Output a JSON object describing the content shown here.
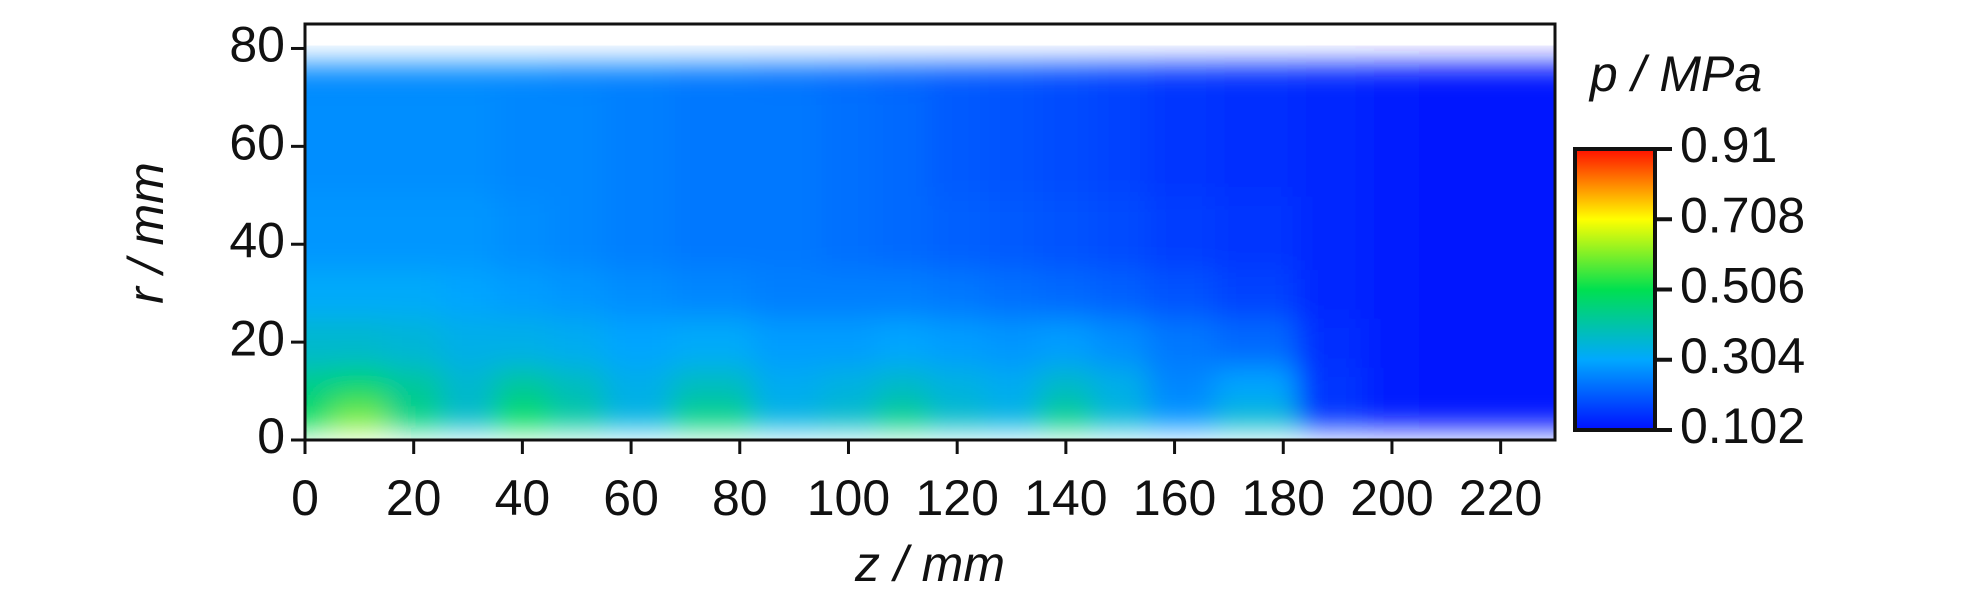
{
  "chart_data": {
    "type": "heatmap",
    "xlabel": "z / mm",
    "ylabel": "r / mm",
    "colorbar_title": "p / MPa",
    "x": [
      0,
      10,
      20,
      30,
      40,
      50,
      60,
      75,
      90,
      100,
      110,
      120,
      130,
      140,
      150,
      160,
      175,
      190,
      200,
      210,
      220,
      230
    ],
    "y": [
      0,
      5,
      10,
      20,
      30,
      40,
      60,
      85
    ],
    "values": [
      [
        0.55,
        0.78,
        0.5,
        0.38,
        0.64,
        0.45,
        0.36,
        0.58,
        0.36,
        0.4,
        0.56,
        0.4,
        0.36,
        0.56,
        0.38,
        0.3,
        0.44,
        0.16,
        0.12,
        0.11,
        0.11,
        0.11
      ],
      [
        0.5,
        0.6,
        0.46,
        0.37,
        0.5,
        0.42,
        0.34,
        0.46,
        0.34,
        0.37,
        0.45,
        0.37,
        0.34,
        0.45,
        0.35,
        0.28,
        0.36,
        0.15,
        0.12,
        0.11,
        0.11,
        0.11
      ],
      [
        0.44,
        0.47,
        0.42,
        0.36,
        0.42,
        0.38,
        0.33,
        0.38,
        0.32,
        0.34,
        0.37,
        0.34,
        0.32,
        0.37,
        0.33,
        0.26,
        0.3,
        0.15,
        0.12,
        0.11,
        0.11,
        0.11
      ],
      [
        0.36,
        0.36,
        0.35,
        0.33,
        0.33,
        0.32,
        0.3,
        0.31,
        0.29,
        0.29,
        0.3,
        0.29,
        0.28,
        0.29,
        0.27,
        0.24,
        0.22,
        0.14,
        0.12,
        0.11,
        0.11,
        0.11
      ],
      [
        0.31,
        0.31,
        0.31,
        0.3,
        0.29,
        0.28,
        0.27,
        0.26,
        0.25,
        0.25,
        0.25,
        0.24,
        0.23,
        0.22,
        0.21,
        0.19,
        0.17,
        0.13,
        0.12,
        0.11,
        0.11,
        0.11
      ],
      [
        0.28,
        0.28,
        0.28,
        0.28,
        0.27,
        0.26,
        0.25,
        0.24,
        0.24,
        0.23,
        0.22,
        0.21,
        0.2,
        0.19,
        0.18,
        0.16,
        0.15,
        0.13,
        0.12,
        0.11,
        0.11,
        0.11
      ],
      [
        0.27,
        0.27,
        0.27,
        0.27,
        0.26,
        0.26,
        0.25,
        0.24,
        0.24,
        0.23,
        0.22,
        0.2,
        0.19,
        0.18,
        0.17,
        0.15,
        0.14,
        0.13,
        0.12,
        0.11,
        0.11,
        0.11
      ],
      [
        0.26,
        0.26,
        0.26,
        0.26,
        0.26,
        0.25,
        0.25,
        0.24,
        0.23,
        0.22,
        0.21,
        0.2,
        0.19,
        0.18,
        0.17,
        0.15,
        0.14,
        0.13,
        0.12,
        0.11,
        0.11,
        0.11
      ]
    ],
    "xlim": [
      0,
      230
    ],
    "xticks": [
      0,
      20,
      40,
      60,
      80,
      100,
      120,
      140,
      160,
      180,
      200,
      220
    ],
    "ylim": [
      0,
      85
    ],
    "yticks": [
      0,
      20,
      40,
      60,
      80
    ],
    "clim": [
      0.102,
      0.91
    ],
    "cticks": [
      0.102,
      0.304,
      0.506,
      0.708,
      0.91
    ],
    "colormap": [
      "#0010ff",
      "#00a8ff",
      "#00e050",
      "#ffff00",
      "#ff1000"
    ]
  }
}
